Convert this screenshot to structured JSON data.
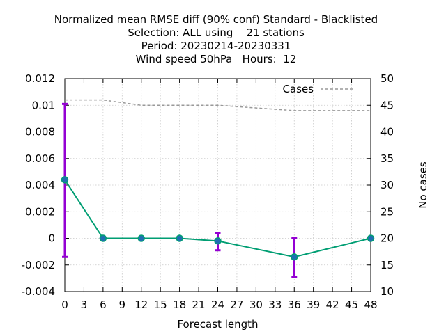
{
  "chart_data": {
    "type": "line",
    "title_lines": [
      "Normalized mean RMSE diff (90% conf) Standard - Blacklisted",
      "Selection: ALL using    21 stations",
      "Period: 20230214-20230331",
      "Wind speed 50hPa   Hours:  12"
    ],
    "xlabel": "Forecast length",
    "ylabel": "",
    "y2label": "No cases",
    "xlim": [
      0,
      48
    ],
    "ylim": [
      -0.004,
      0.012
    ],
    "y2lim": [
      10,
      50
    ],
    "x_ticks": [
      "0",
      "3",
      "6",
      "9",
      "12",
      "15",
      "18",
      "21",
      "24",
      "27",
      "30",
      "33",
      "36",
      "39",
      "42",
      "45",
      "48"
    ],
    "y_ticks": [
      "-0.004",
      "-0.002",
      "0",
      "0.002",
      "0.004",
      "0.006",
      "0.008",
      "0.01",
      "0.012"
    ],
    "y2_ticks": [
      "10",
      "15",
      "20",
      "25",
      "30",
      "35",
      "40",
      "45",
      "50"
    ],
    "grid": true,
    "legend_position": "top-right",
    "series": [
      {
        "name": "",
        "axis": "y",
        "color": "#009e73",
        "marker_color": "#1f6fb2",
        "x": [
          0,
          6,
          12,
          18,
          24,
          36,
          48
        ],
        "y": [
          0.0044,
          0.0,
          0.0,
          0.0,
          -0.0002,
          -0.0014,
          0.0
        ],
        "err_low": [
          -0.0014,
          0.0,
          0.0,
          0.0,
          -0.0009,
          -0.0029,
          0.0
        ],
        "err_high": [
          0.0101,
          0.0,
          0.0,
          0.0,
          0.0004,
          0.0,
          0.0
        ],
        "err_color": "#9400d3"
      },
      {
        "name": "Cases",
        "axis": "y2",
        "color": "#999999",
        "x": [
          0,
          6,
          12,
          18,
          24,
          36,
          48
        ],
        "y": [
          46,
          46,
          45,
          45,
          45,
          44,
          44
        ]
      }
    ]
  }
}
